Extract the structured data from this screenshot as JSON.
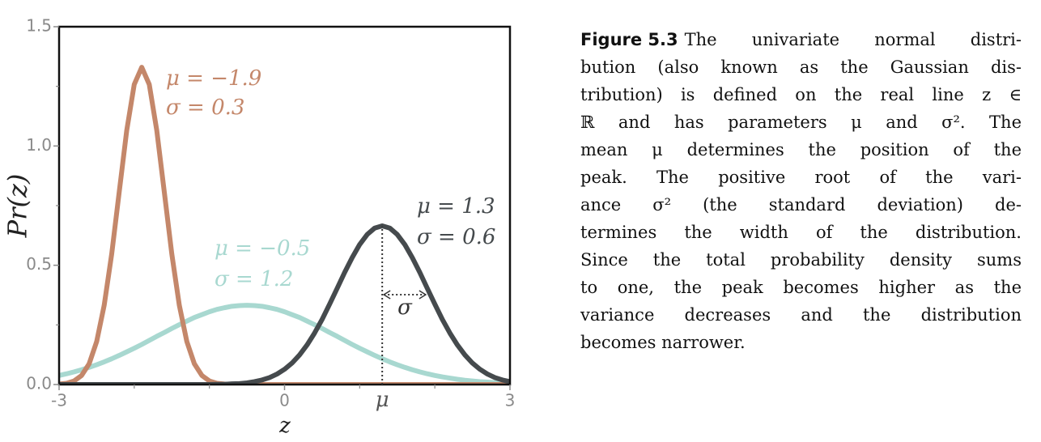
{
  "chart_data": {
    "type": "line",
    "x": [
      -3.0,
      -2.9,
      -2.8,
      -2.7,
      -2.6,
      -2.5,
      -2.4,
      -2.3,
      -2.2,
      -2.1,
      -2.0,
      -1.9,
      -1.8,
      -1.7,
      -1.6,
      -1.5,
      -1.4,
      -1.3,
      -1.2,
      -1.1,
      -1.0,
      -0.9,
      -0.8,
      -0.7,
      -0.6,
      -0.5,
      -0.4,
      -0.3,
      -0.2,
      -0.1,
      0.0,
      0.1,
      0.2,
      0.3,
      0.4,
      0.5,
      0.6,
      0.7,
      0.8,
      0.9,
      1.0,
      1.1,
      1.2,
      1.3,
      1.4,
      1.5,
      1.6,
      1.7,
      1.8,
      1.9,
      2.0,
      2.1,
      2.2,
      2.3,
      2.4,
      2.5,
      2.6,
      2.7,
      2.8,
      2.9,
      3.0
    ],
    "series": [
      {
        "mu_label": "μ = −1.9",
        "sigma_label": "σ = 0.3",
        "color": "#c4876a",
        "values": [
          0.002,
          0.005,
          0.015,
          0.038,
          0.087,
          0.18,
          0.332,
          0.547,
          0.807,
          1.065,
          1.258,
          1.33,
          1.258,
          1.065,
          0.807,
          0.547,
          0.332,
          0.18,
          0.087,
          0.038,
          0.015,
          0.005,
          0.002,
          0,
          0,
          0,
          0,
          0,
          0,
          0,
          0,
          0,
          0,
          0,
          0,
          0,
          0,
          0,
          0,
          0,
          0,
          0,
          0,
          0,
          0,
          0,
          0,
          0,
          0,
          0,
          0,
          0,
          0,
          0,
          0,
          0,
          0,
          0,
          0,
          0,
          0
        ]
      },
      {
        "mu_label": "μ = −0.5",
        "sigma_label": "σ = 1.2",
        "color": "#a8d8d0",
        "values": [
          0.038,
          0.045,
          0.053,
          0.062,
          0.072,
          0.083,
          0.095,
          0.108,
          0.122,
          0.137,
          0.152,
          0.168,
          0.185,
          0.202,
          0.218,
          0.235,
          0.251,
          0.266,
          0.281,
          0.293,
          0.305,
          0.315,
          0.322,
          0.328,
          0.331,
          0.332,
          0.331,
          0.328,
          0.322,
          0.315,
          0.305,
          0.293,
          0.281,
          0.266,
          0.251,
          0.235,
          0.218,
          0.202,
          0.185,
          0.168,
          0.152,
          0.137,
          0.122,
          0.108,
          0.095,
          0.083,
          0.072,
          0.062,
          0.053,
          0.045,
          0.038,
          0.032,
          0.027,
          0.022,
          0.018,
          0.015,
          0.012,
          0.01,
          0.008,
          0.006,
          0.005
        ]
      },
      {
        "mu_label": "μ = 1.3",
        "sigma_label": "σ = 0.6",
        "color": "#454a4d",
        "values": [
          0,
          0,
          0,
          0,
          0,
          0,
          0,
          0,
          0,
          0,
          0,
          0,
          0,
          0,
          0,
          0,
          0,
          0,
          0,
          0,
          0,
          0.001,
          0.001,
          0.003,
          0.004,
          0.007,
          0.012,
          0.019,
          0.029,
          0.044,
          0.064,
          0.09,
          0.124,
          0.166,
          0.216,
          0.273,
          0.337,
          0.403,
          0.47,
          0.532,
          0.587,
          0.629,
          0.656,
          0.665,
          0.656,
          0.629,
          0.587,
          0.532,
          0.47,
          0.403,
          0.337,
          0.273,
          0.216,
          0.166,
          0.124,
          0.09,
          0.064,
          0.044,
          0.029,
          0.019,
          0.012
        ]
      }
    ],
    "xlabel": "z",
    "ylabel": "Pr(z)",
    "xlim": [
      -3,
      3
    ],
    "xticks": [
      -3,
      0,
      3
    ],
    "xminor_ticks": [
      -2,
      -1,
      1,
      2
    ],
    "ylim": [
      0,
      1.5
    ],
    "yticks": [
      {
        "value": 0,
        "label": "0.0"
      },
      {
        "value": 0.5,
        "label": "0.5"
      },
      {
        "value": 1,
        "label": "1.0"
      },
      {
        "value": 1.5,
        "label": "1.5"
      }
    ],
    "yminor_ticks": [
      0.25,
      0.75,
      1.25
    ],
    "annotations": {
      "mu": {
        "x": 1.3,
        "label": "μ"
      },
      "sigma": {
        "width": 0.6,
        "label": "σ"
      }
    }
  },
  "caption": {
    "label": "Figure 5.3",
    "lines": [
      "The univariate normal distri-",
      "bution (also known as the Gaussian dis-",
      "tribution) is defined on the real line z ∈",
      "ℝ and has parameters μ and σ². The",
      "mean μ determines the position of the",
      "peak. The positive root of the vari-",
      "ance σ² (the standard deviation) de-",
      "termines the width of the distribution.",
      "Since the total probability density sums",
      "to one, the peak becomes higher as the",
      "variance decreases and the distribution",
      "becomes narrower."
    ]
  }
}
